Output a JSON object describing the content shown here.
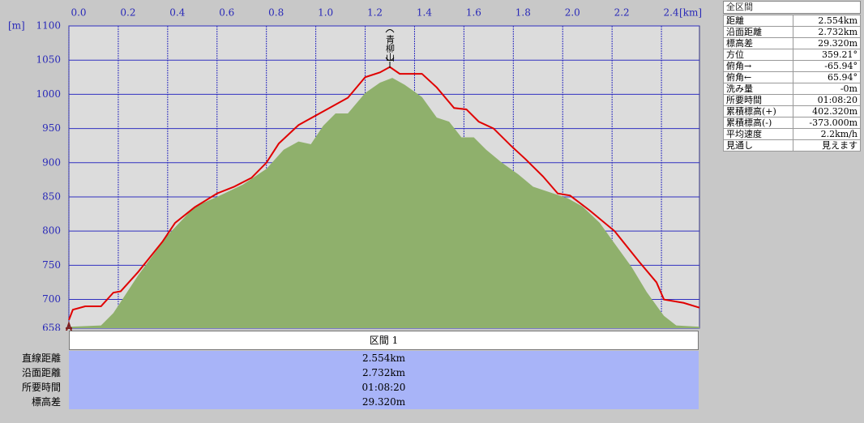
{
  "chart_data": {
    "type": "area-line",
    "x_unit": "[km]",
    "y_unit": "[m]",
    "xlim": [
      0,
      2.554
    ],
    "ylim": [
      658,
      1100
    ],
    "xticks": [
      {
        "value": 0,
        "label": "0.0"
      },
      0.2,
      0.4,
      0.6,
      0.8,
      {
        "value": 1,
        "label": "1.0"
      },
      1.2,
      1.4,
      1.6,
      1.8,
      {
        "value": 2,
        "label": "2.0"
      },
      2.2,
      2.4
    ],
    "yticks": [
      658,
      700,
      750,
      800,
      850,
      900,
      950,
      1000,
      1050,
      1100
    ],
    "grid": true,
    "annotation": {
      "text": "青柳山",
      "x": 1.3
    },
    "series": [
      {
        "kind": "area",
        "color": "#8fb06c",
        "x": [
          0,
          0.13,
          0.18,
          0.28,
          0.4,
          0.51,
          0.6,
          0.705,
          0.8,
          0.87,
          0.93,
          0.98,
          1.03,
          1.08,
          1.13,
          1.2,
          1.26,
          1.31,
          1.36,
          1.43,
          1.49,
          1.54,
          1.59,
          1.64,
          1.69,
          1.75,
          1.82,
          1.88,
          2.02,
          2.08,
          2.15,
          2.21,
          2.28,
          2.34,
          2.41,
          2.46,
          2.554
        ],
        "values": [
          660,
          662,
          680,
          735,
          794,
          836,
          850,
          868,
          891,
          919,
          931,
          927,
          954,
          972,
          972,
          1002,
          1017,
          1024,
          1014,
          996,
          966,
          960,
          937,
          937,
          919,
          901,
          883,
          865,
          848,
          836,
          812,
          782,
          747,
          711,
          676,
          662,
          660
        ]
      },
      {
        "kind": "line",
        "color": "#e00000",
        "x": [
          0,
          0.016,
          0.066,
          0.13,
          0.18,
          0.21,
          0.28,
          0.38,
          0.43,
          0.51,
          0.6,
          0.67,
          0.74,
          0.8,
          0.85,
          0.93,
          1.03,
          1.13,
          1.2,
          1.26,
          1.3,
          1.34,
          1.43,
          1.49,
          1.56,
          1.61,
          1.66,
          1.72,
          1.79,
          1.85,
          1.92,
          1.98,
          2.03,
          2.11,
          2.21,
          2.31,
          2.38,
          2.41,
          2.49,
          2.554
        ],
        "values": [
          670,
          685,
          690,
          690,
          710,
          712,
          740,
          785,
          812,
          835,
          855,
          865,
          878,
          900,
          928,
          955,
          975,
          995,
          1025,
          1032,
          1040,
          1030,
          1030,
          1010,
          980,
          978,
          960,
          950,
          925,
          905,
          880,
          855,
          852,
          830,
          800,
          755,
          725,
          700,
          695,
          688
        ]
      }
    ]
  },
  "summary": {
    "title": "全区間",
    "rows": [
      [
        "距離",
        "2.554km"
      ],
      [
        "沿面距離",
        "2.732km"
      ],
      [
        "標高差",
        "29.320m"
      ],
      [
        "方位",
        "359.21°"
      ],
      [
        "俯角→",
        "-65.94°"
      ],
      [
        "俯角←",
        "65.94°"
      ],
      [
        "洗み量",
        "-0m"
      ],
      [
        "所要時間",
        "01:08:20"
      ],
      [
        "累積標高(+)",
        "402.320m"
      ],
      [
        "累積標高(-)",
        "-373.000m"
      ],
      [
        "平均速度",
        "2.2km/h"
      ],
      [
        "見通し",
        "見えます"
      ]
    ]
  },
  "section_table": {
    "header": "区間 1",
    "rows": [
      [
        "直線距離",
        "2.554km"
      ],
      [
        "沿面距離",
        "2.732km"
      ],
      [
        "所要時間",
        "01:08:20"
      ],
      [
        "標高差",
        "29.320m"
      ]
    ]
  }
}
